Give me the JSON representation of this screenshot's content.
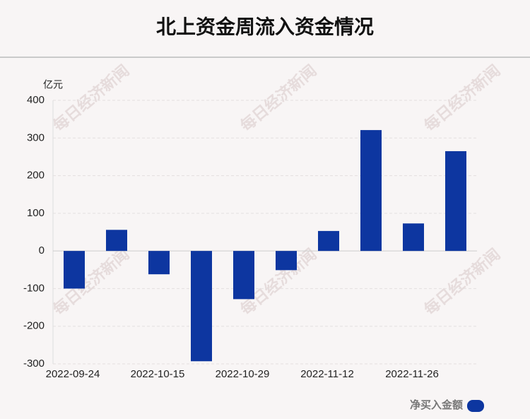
{
  "chart_data": {
    "type": "bar",
    "title": "北上资金周流入资金情况",
    "y_label": "亿元",
    "watermark": "每日经济新闻",
    "categories": [
      "2022-09-24",
      null,
      "2022-10-15",
      null,
      "2022-10-29",
      null,
      "2022-11-12",
      null,
      "2022-11-26",
      null
    ],
    "series": [
      {
        "name": "净买入金额",
        "color": "#0d36a0",
        "values": [
          -100,
          56,
          -62,
          -293,
          -128,
          -51,
          53,
          321,
          73,
          265
        ]
      }
    ],
    "ylim": [
      -300,
      400
    ],
    "yticks": [
      -300,
      -200,
      -100,
      0,
      100,
      200,
      300,
      400
    ],
    "grid": true,
    "legend": "bottom-right"
  }
}
